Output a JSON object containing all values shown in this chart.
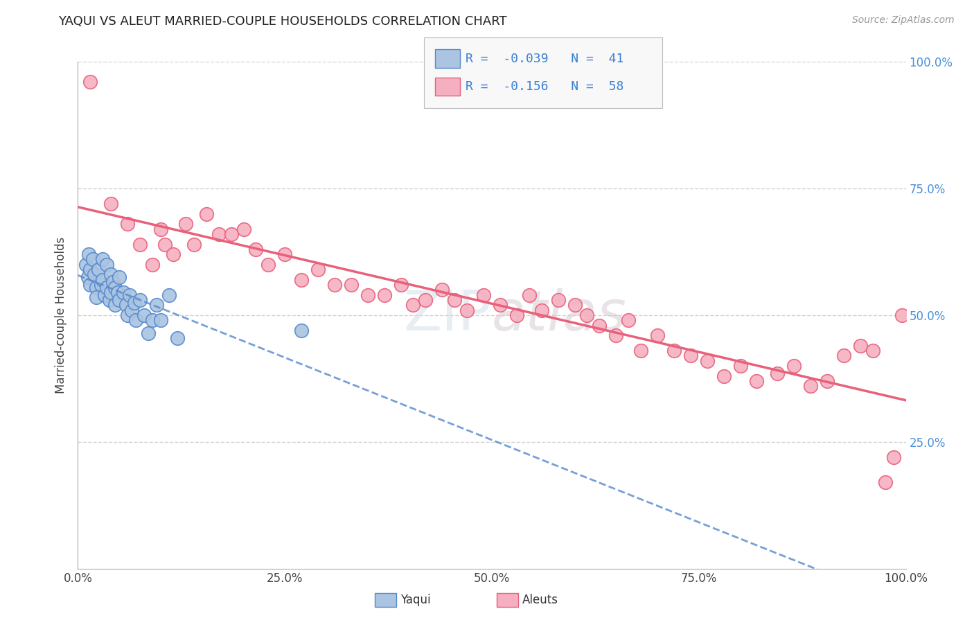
{
  "title": "YAQUI VS ALEUT MARRIED-COUPLE HOUSEHOLDS CORRELATION CHART",
  "source": "Source: ZipAtlas.com",
  "ylabel": "Married-couple Households",
  "yaqui_R": -0.039,
  "yaqui_N": 41,
  "aleut_R": -0.156,
  "aleut_N": 58,
  "yaqui_color": "#aac4e2",
  "aleut_color": "#f5afc0",
  "yaqui_line_color": "#5588cc",
  "aleut_line_color": "#e8607a",
  "grid_color": "#cccccc",
  "xmin": 0.0,
  "xmax": 1.0,
  "ymin": 0.0,
  "ymax": 1.0,
  "background_color": "#ffffff",
  "yaqui_x": [
    0.01,
    0.012,
    0.013,
    0.015,
    0.015,
    0.018,
    0.02,
    0.022,
    0.022,
    0.025,
    0.028,
    0.03,
    0.03,
    0.032,
    0.035,
    0.035,
    0.038,
    0.04,
    0.04,
    0.042,
    0.045,
    0.045,
    0.048,
    0.05,
    0.05,
    0.055,
    0.058,
    0.06,
    0.062,
    0.065,
    0.068,
    0.07,
    0.075,
    0.08,
    0.085,
    0.09,
    0.095,
    0.1,
    0.11,
    0.12,
    0.27
  ],
  "yaqui_y": [
    0.6,
    0.575,
    0.62,
    0.59,
    0.56,
    0.61,
    0.58,
    0.555,
    0.535,
    0.59,
    0.56,
    0.61,
    0.57,
    0.54,
    0.6,
    0.555,
    0.53,
    0.58,
    0.545,
    0.565,
    0.555,
    0.52,
    0.545,
    0.575,
    0.53,
    0.545,
    0.52,
    0.5,
    0.54,
    0.51,
    0.525,
    0.49,
    0.53,
    0.5,
    0.465,
    0.49,
    0.52,
    0.49,
    0.54,
    0.455,
    0.47
  ],
  "aleut_x": [
    0.015,
    0.04,
    0.06,
    0.075,
    0.09,
    0.1,
    0.105,
    0.115,
    0.13,
    0.14,
    0.155,
    0.17,
    0.185,
    0.2,
    0.215,
    0.23,
    0.25,
    0.27,
    0.29,
    0.31,
    0.33,
    0.35,
    0.37,
    0.39,
    0.405,
    0.42,
    0.44,
    0.455,
    0.47,
    0.49,
    0.51,
    0.53,
    0.545,
    0.56,
    0.58,
    0.6,
    0.615,
    0.63,
    0.65,
    0.665,
    0.68,
    0.7,
    0.72,
    0.74,
    0.76,
    0.78,
    0.8,
    0.82,
    0.845,
    0.865,
    0.885,
    0.905,
    0.925,
    0.945,
    0.96,
    0.975,
    0.985,
    0.995
  ],
  "aleut_y": [
    0.96,
    0.72,
    0.68,
    0.64,
    0.6,
    0.67,
    0.64,
    0.62,
    0.68,
    0.64,
    0.7,
    0.66,
    0.66,
    0.67,
    0.63,
    0.6,
    0.62,
    0.57,
    0.59,
    0.56,
    0.56,
    0.54,
    0.54,
    0.56,
    0.52,
    0.53,
    0.55,
    0.53,
    0.51,
    0.54,
    0.52,
    0.5,
    0.54,
    0.51,
    0.53,
    0.52,
    0.5,
    0.48,
    0.46,
    0.49,
    0.43,
    0.46,
    0.43,
    0.42,
    0.41,
    0.38,
    0.4,
    0.37,
    0.385,
    0.4,
    0.36,
    0.37,
    0.42,
    0.44,
    0.43,
    0.17,
    0.22,
    0.5
  ]
}
